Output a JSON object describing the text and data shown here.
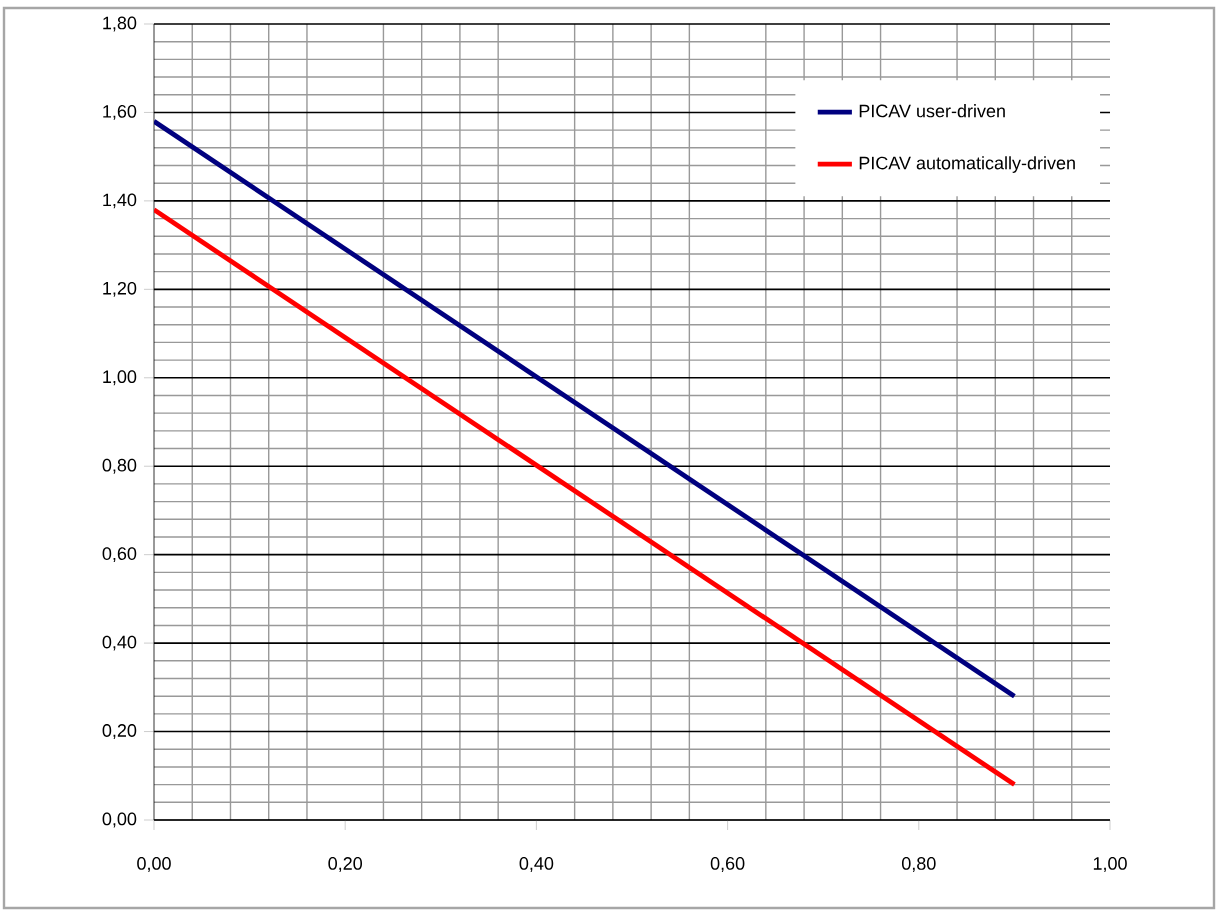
{
  "chart_data": {
    "type": "line",
    "x": [
      0,
      0.9
    ],
    "series": [
      {
        "name": "PICAV user-driven",
        "color": "#00007f",
        "values": [
          1.58,
          0.28
        ]
      },
      {
        "name": "PICAV automatically-driven",
        "color": "#ff0000",
        "values": [
          1.38,
          0.08
        ]
      }
    ],
    "xlim": [
      0,
      1
    ],
    "ylim": [
      0,
      1.8
    ],
    "xticks": [
      {
        "value": 0,
        "label": "0,00"
      },
      {
        "value": 0.2,
        "label": "0,20"
      },
      {
        "value": 0.4,
        "label": "0,40"
      },
      {
        "value": 0.6,
        "label": "0,60"
      },
      {
        "value": 0.8,
        "label": "0,80"
      },
      {
        "value": 1,
        "label": "1,00"
      }
    ],
    "yticks": [
      {
        "value": 0,
        "label": "0,00"
      },
      {
        "value": 0.2,
        "label": "0,20"
      },
      {
        "value": 0.4,
        "label": "0,40"
      },
      {
        "value": 0.6,
        "label": "0,60"
      },
      {
        "value": 0.8,
        "label": "0,80"
      },
      {
        "value": 1,
        "label": "1,00"
      },
      {
        "value": 1.2,
        "label": "1,20"
      },
      {
        "value": 1.4,
        "label": "1,40"
      },
      {
        "value": 1.6,
        "label": "1,60"
      },
      {
        "value": 1.8,
        "label": "1,80"
      }
    ],
    "grid": true,
    "legend": "top right",
    "marker": "none",
    "line_style": "solid"
  }
}
